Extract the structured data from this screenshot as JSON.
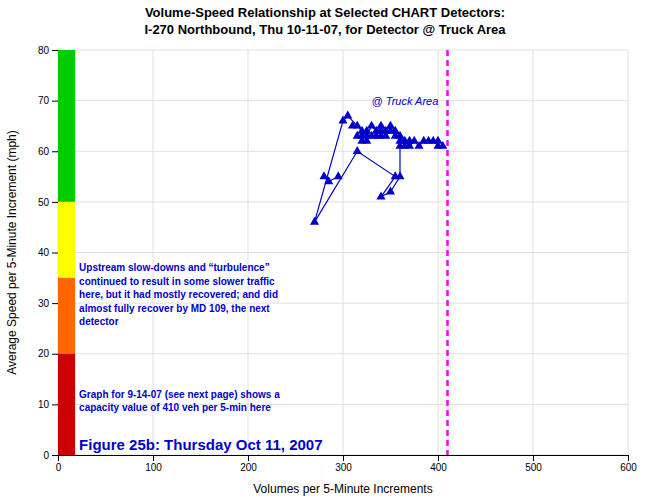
{
  "chart_data": {
    "type": "scatter",
    "title": "Volume-Speed Relationship at Selected CHART Detectors:",
    "subtitle": "I-270 Northbound, Thu 10-11-07, for Detector @ Truck Area",
    "x_label": "Volumes per 5-Minute Increments",
    "y_label": "Average Speed per 5-Minute Increment (mph)",
    "xlim": [
      0,
      600
    ],
    "ylim": [
      0,
      80
    ],
    "xticks": [
      0,
      100,
      200,
      300,
      400,
      500,
      600
    ],
    "yticks": [
      0,
      10,
      20,
      30,
      40,
      50,
      60,
      70,
      80
    ],
    "grid": true,
    "series": [
      {
        "type": "scatter",
        "color": "#0000CC",
        "marker": "triangle",
        "x": [
          270,
          280,
          285,
          295,
          300,
          305,
          310,
          315,
          315,
          315,
          320,
          320,
          320,
          325,
          325,
          325,
          330,
          330,
          335,
          335,
          340,
          340,
          340,
          345,
          345,
          350,
          350,
          355,
          355,
          360,
          360,
          365,
          365,
          370,
          370,
          375,
          380,
          385,
          390,
          395,
          400,
          400,
          405,
          360,
          350,
          340,
          355,
          360
        ],
        "values": [
          46,
          55,
          54,
          55,
          66,
          67,
          65,
          65,
          63,
          60,
          64,
          63,
          62,
          64,
          63,
          62,
          65,
          63,
          64,
          63,
          65,
          64,
          63,
          64,
          63,
          65,
          64,
          64,
          63,
          63,
          62,
          62,
          61,
          62,
          61,
          62,
          61,
          62,
          62,
          62,
          62,
          61,
          61,
          55,
          52,
          51,
          55,
          61
        ]
      },
      {
        "type": "line",
        "color": "#0000CC",
        "line_style": "solid",
        "x": [
          270,
          300,
          305,
          315,
          320,
          325,
          330,
          335,
          340,
          345,
          350,
          355,
          360,
          365,
          370,
          375,
          380,
          385,
          390,
          395,
          400,
          null,
          270,
          315,
          355,
          340,
          350,
          360,
          360,
          null,
          280,
          285,
          295
        ],
        "values": [
          46,
          66,
          67,
          65,
          64,
          63,
          65,
          64,
          65,
          64,
          65,
          64,
          63,
          62,
          61,
          62,
          61,
          62,
          62,
          62,
          62,
          null,
          46,
          60,
          55,
          51,
          52,
          55,
          62,
          null,
          55,
          54,
          55
        ]
      }
    ],
    "speed_bands": [
      {
        "y_bottom": 50,
        "y_top": 80,
        "color": "#00CC00"
      },
      {
        "y_bottom": 35,
        "y_top": 50,
        "color": "#FFFF00"
      },
      {
        "y_bottom": 20,
        "y_top": 35,
        "color": "#FF6600"
      },
      {
        "y_bottom": 0,
        "y_top": 20,
        "color": "#CC0000"
      }
    ],
    "reference_lines": [
      {
        "x": 410,
        "color": "#FF00FF",
        "line_style": "dashed"
      }
    ],
    "annotations": [
      {
        "text": "@ Truck Area",
        "color": "#0000CC"
      },
      {
        "text": "Upstream slow-downs and “turbulence”\ncontinued to result in some slower traffic\nhere, but it had mostly recovered; and did\nalmost fully recover by MD 109, the next\ndetector",
        "color": "#0000CC"
      },
      {
        "text": "Graph for 9-14-07 (see next page) shows a\ncapacity value of 410 veh per 5-min here",
        "color": "#0000CC"
      },
      {
        "text": "Figure 25b: Thursday Oct 11, 2007",
        "color": "#0000CC"
      }
    ]
  }
}
